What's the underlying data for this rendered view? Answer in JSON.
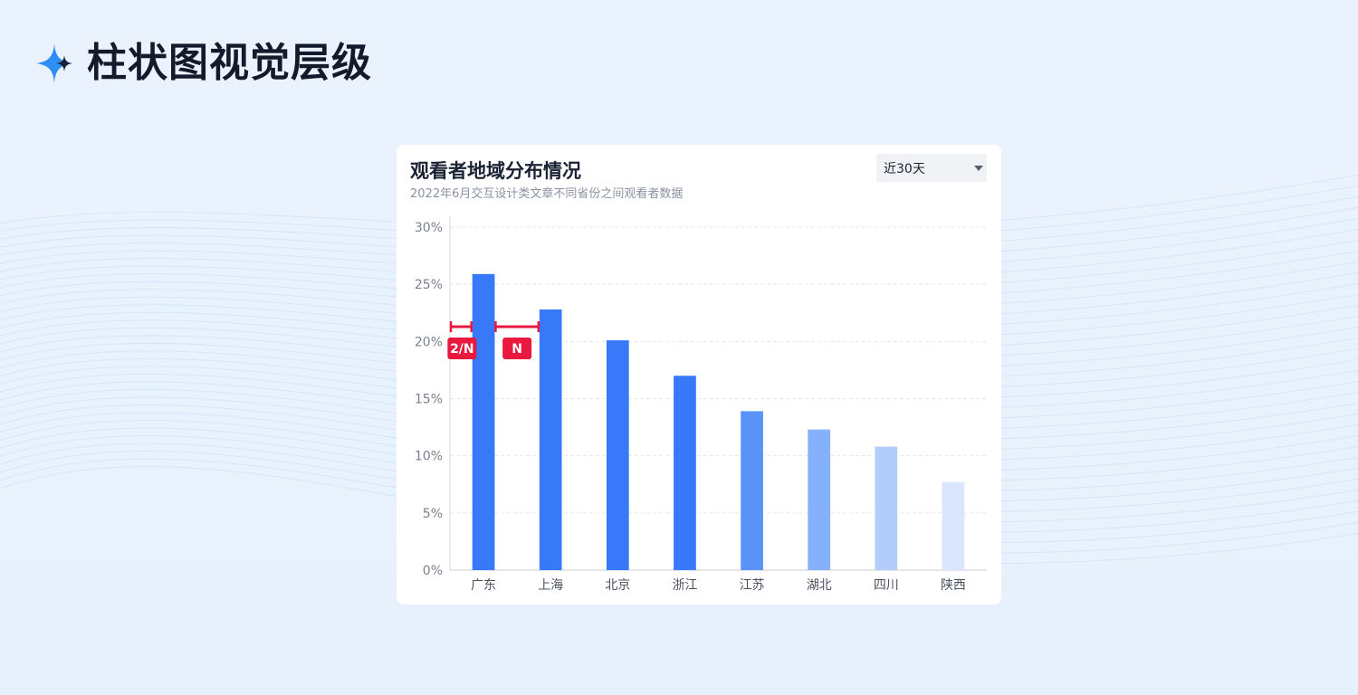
{
  "page": {
    "title": "柱状图视觉层级",
    "star_icon": "sparkle-icon",
    "star_color_light": "#2f8ef4",
    "star_color_dark": "#16223b"
  },
  "card": {
    "title": "观看者地域分布情况",
    "subtitle": "2022年6月交互设计类文章不同省份之间观看者数据",
    "range_select": {
      "value": "近30天",
      "icon": "caret-down-icon"
    }
  },
  "annotations": {
    "half_label": "2/N",
    "full_label": "N",
    "color": "#e8183e"
  },
  "chart_data": {
    "type": "bar",
    "title": "",
    "xlabel": "",
    "ylabel": "",
    "categories": [
      "广东",
      "上海",
      "北京",
      "浙江",
      "江苏",
      "湖北",
      "四川",
      "陕西"
    ],
    "values": [
      25.9,
      22.8,
      20.1,
      17.0,
      13.9,
      12.3,
      10.8,
      7.7
    ],
    "ylim": [
      0,
      30
    ],
    "yticks": [
      0,
      5,
      10,
      15,
      20,
      25,
      30
    ],
    "ytick_labels": [
      "0%",
      "5%",
      "10%",
      "15%",
      "20%",
      "25%",
      "30%"
    ],
    "grid": true,
    "bar_colors": [
      "#3779f8",
      "#3779f8",
      "#3779f8",
      "#3779f8",
      "#5a94fa",
      "#85b0fb",
      "#b2cdfc",
      "#d9e6fd"
    ]
  }
}
